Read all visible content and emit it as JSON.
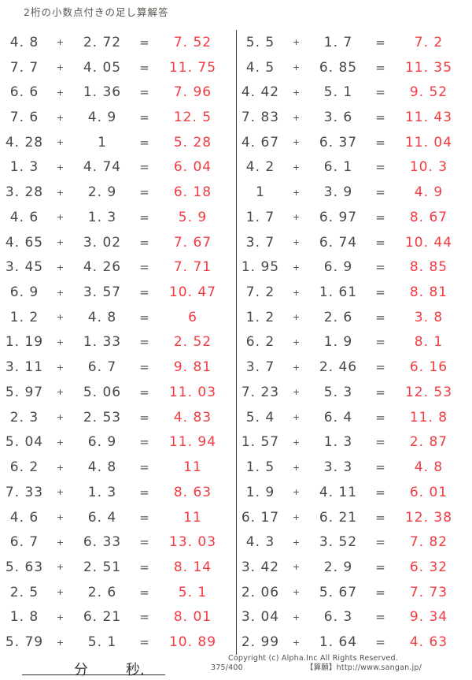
{
  "title": "2桁の小数点付きの足し算解答",
  "operators": {
    "plus": "+",
    "equals": "="
  },
  "colors": {
    "answer_red": "#f23b41",
    "text_dark": "#4c4744"
  },
  "problems": {
    "left": [
      {
        "a": "4.8",
        "b": "2.72",
        "ans": "7.52"
      },
      {
        "a": "7.7",
        "b": "4.05",
        "ans": "11.75"
      },
      {
        "a": "6.6",
        "b": "1.36",
        "ans": "7.96"
      },
      {
        "a": "7.6",
        "b": "4.9",
        "ans": "12.5"
      },
      {
        "a": "4.28",
        "b": "1",
        "ans": "5.28"
      },
      {
        "a": "1.3",
        "b": "4.74",
        "ans": "6.04"
      },
      {
        "a": "3.28",
        "b": "2.9",
        "ans": "6.18"
      },
      {
        "a": "4.6",
        "b": "1.3",
        "ans": "5.9"
      },
      {
        "a": "4.65",
        "b": "3.02",
        "ans": "7.67"
      },
      {
        "a": "3.45",
        "b": "4.26",
        "ans": "7.71"
      },
      {
        "a": "6.9",
        "b": "3.57",
        "ans": "10.47"
      },
      {
        "a": "1.2",
        "b": "4.8",
        "ans": "6"
      },
      {
        "a": "1.19",
        "b": "1.33",
        "ans": "2.52"
      },
      {
        "a": "3.11",
        "b": "6.7",
        "ans": "9.81"
      },
      {
        "a": "5.97",
        "b": "5.06",
        "ans": "11.03"
      },
      {
        "a": "2.3",
        "b": "2.53",
        "ans": "4.83"
      },
      {
        "a": "5.04",
        "b": "6.9",
        "ans": "11.94"
      },
      {
        "a": "6.2",
        "b": "4.8",
        "ans": "11"
      },
      {
        "a": "7.33",
        "b": "1.3",
        "ans": "8.63"
      },
      {
        "a": "4.6",
        "b": "6.4",
        "ans": "11"
      },
      {
        "a": "6.7",
        "b": "6.33",
        "ans": "13.03"
      },
      {
        "a": "5.63",
        "b": "2.51",
        "ans": "8.14"
      },
      {
        "a": "2.5",
        "b": "2.6",
        "ans": "5.1"
      },
      {
        "a": "1.8",
        "b": "6.21",
        "ans": "8.01"
      },
      {
        "a": "5.79",
        "b": "5.1",
        "ans": "10.89"
      }
    ],
    "right": [
      {
        "a": "5.5",
        "b": "1.7",
        "ans": "7.2"
      },
      {
        "a": "4.5",
        "b": "6.85",
        "ans": "11.35"
      },
      {
        "a": "4.42",
        "b": "5.1",
        "ans": "9.52"
      },
      {
        "a": "7.83",
        "b": "3.6",
        "ans": "11.43"
      },
      {
        "a": "4.67",
        "b": "6.37",
        "ans": "11.04"
      },
      {
        "a": "4.2",
        "b": "6.1",
        "ans": "10.3"
      },
      {
        "a": "1",
        "b": "3.9",
        "ans": "4.9"
      },
      {
        "a": "1.7",
        "b": "6.97",
        "ans": "8.67"
      },
      {
        "a": "3.7",
        "b": "6.74",
        "ans": "10.44"
      },
      {
        "a": "1.95",
        "b": "6.9",
        "ans": "8.85"
      },
      {
        "a": "7.2",
        "b": "1.61",
        "ans": "8.81"
      },
      {
        "a": "1.2",
        "b": "2.6",
        "ans": "3.8"
      },
      {
        "a": "6.2",
        "b": "1.9",
        "ans": "8.1"
      },
      {
        "a": "3.7",
        "b": "2.46",
        "ans": "6.16"
      },
      {
        "a": "7.23",
        "b": "5.3",
        "ans": "12.53"
      },
      {
        "a": "5.4",
        "b": "6.4",
        "ans": "11.8"
      },
      {
        "a": "1.57",
        "b": "1.3",
        "ans": "2.87"
      },
      {
        "a": "1.5",
        "b": "3.3",
        "ans": "4.8"
      },
      {
        "a": "1.9",
        "b": "4.11",
        "ans": "6.01"
      },
      {
        "a": "6.17",
        "b": "6.21",
        "ans": "12.38"
      },
      {
        "a": "4.3",
        "b": "3.52",
        "ans": "7.82"
      },
      {
        "a": "3.42",
        "b": "2.9",
        "ans": "6.32"
      },
      {
        "a": "2.06",
        "b": "5.67",
        "ans": "7.73"
      },
      {
        "a": "3.04",
        "b": "6.3",
        "ans": "9.34"
      },
      {
        "a": "2.99",
        "b": "1.64",
        "ans": "4.63"
      }
    ]
  },
  "footer": {
    "minutes_label": "分",
    "seconds_label": "秒.",
    "copyright_line1": "Copyright (c)  Alpha.Inc All Rights Reserved.",
    "page_number": "375/400",
    "site_credit": "【算願】http://www.sangan.jp/"
  }
}
